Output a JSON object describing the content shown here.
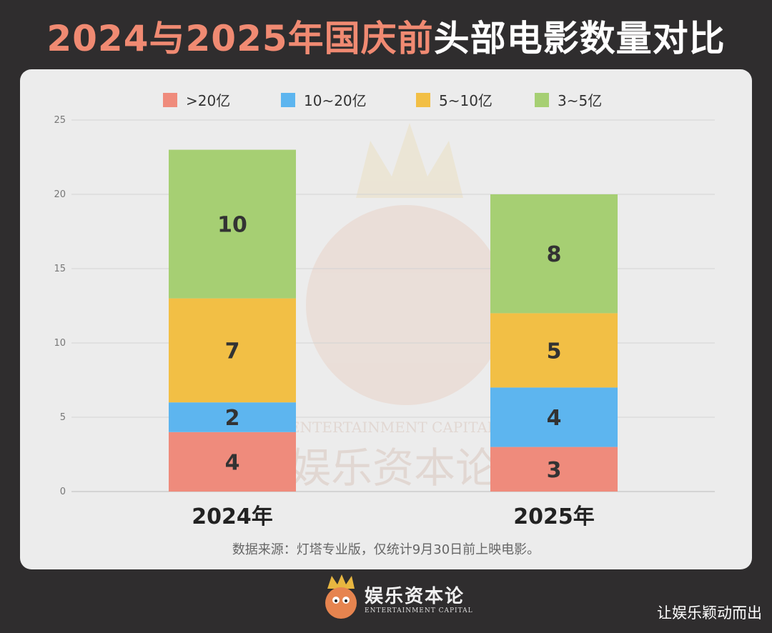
{
  "title": {
    "part1": "2024与2025年国庆前",
    "part2": "头部电影数量对比"
  },
  "colors": {
    "title_highlight": "#f08a72",
    "gt20": "#ef8b7c",
    "b10_20": "#5db5ef",
    "b5_10": "#f2bf45",
    "b3_5": "#a6cf73"
  },
  "chart_data": {
    "type": "bar",
    "stacked": true,
    "categories": [
      "2024年",
      "2025年"
    ],
    "series": [
      {
        "name": ">20亿",
        "values": [
          4,
          3
        ],
        "color": "#ef8b7c"
      },
      {
        "name": "10~20亿",
        "values": [
          2,
          4
        ],
        "color": "#5db5ef"
      },
      {
        "name": "5~10亿",
        "values": [
          7,
          5
        ],
        "color": "#f2bf45"
      },
      {
        "name": "3~5亿",
        "values": [
          10,
          8
        ],
        "color": "#a6cf73"
      }
    ],
    "ylim": [
      0,
      25
    ],
    "yticks": [
      "0",
      "5",
      "10",
      "15",
      "20",
      "25"
    ],
    "grid": true,
    "legend_position": "top",
    "data_labels": true
  },
  "watermark": {
    "en": "ENTERTAINMENT CAPITAL",
    "cn": "娱乐资本论"
  },
  "source_note": "数据来源：灯塔专业版，仅统计9月30日前上映电影。",
  "footer": {
    "logo_text": "娱乐资本论",
    "logo_sub": "ENTERTAINMENT CAPITAL",
    "credit": "让娱乐颖动而出"
  }
}
